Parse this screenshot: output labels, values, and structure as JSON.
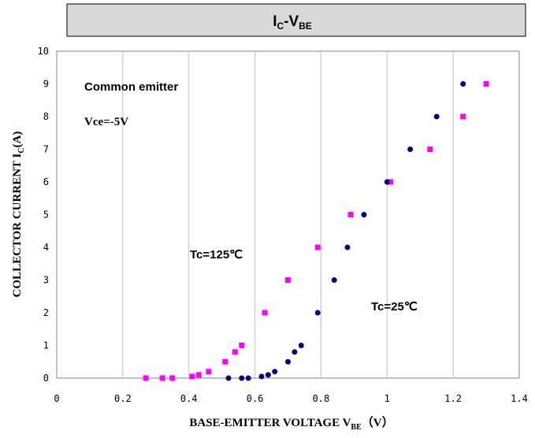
{
  "chart_data": {
    "type": "scatter",
    "title": "I",
    "title_sub1": "C",
    "title_mid": "-V",
    "title_sub2": "BE",
    "xlabel": "BASE-EMITTER VOLTAGE    V",
    "xlabel_sub": "BE",
    "xlabel_unit": "（V）",
    "ylabel": "COLLECTOR CURRENT    I",
    "ylabel_sub": "C",
    "ylabel_unit": "(A)",
    "xlim": [
      0,
      1.4
    ],
    "ylim": [
      0,
      10
    ],
    "x_ticks": [
      0,
      0.2,
      0.4,
      0.6,
      0.8,
      1,
      1.2,
      1.4
    ],
    "x_tick_labels": [
      "0",
      "0.2",
      "0.4",
      "0.6",
      "0.8",
      "1",
      "1.2",
      "1.4"
    ],
    "y_ticks": [
      0,
      1,
      2,
      3,
      4,
      5,
      6,
      7,
      8,
      9,
      10
    ],
    "y_tick_labels": [
      "0",
      "1",
      "2",
      "3",
      "4",
      "5",
      "6",
      "7",
      "8",
      "9",
      "10"
    ],
    "grid": "vertical",
    "annotations": {
      "common_emitter": "Common emitter",
      "vce": "Vce=-5V",
      "tc125": "Tc=125℃",
      "tc25": "Tc=25℃"
    },
    "series": [
      {
        "color": "#ff00ff",
        "marker": "square",
        "points": [
          [
            0.27,
            0
          ],
          [
            0.32,
            0
          ],
          [
            0.35,
            0
          ],
          [
            0.41,
            0.05
          ],
          [
            0.43,
            0.1
          ],
          [
            0.46,
            0.2
          ],
          [
            0.51,
            0.5
          ],
          [
            0.54,
            0.8
          ],
          [
            0.56,
            1.0
          ],
          [
            0.63,
            2
          ],
          [
            0.7,
            3
          ],
          [
            0.79,
            4
          ],
          [
            0.89,
            5
          ],
          [
            1.01,
            6
          ],
          [
            1.13,
            7
          ],
          [
            1.23,
            8
          ],
          [
            1.3,
            9
          ]
        ]
      },
      {
        "color": "#000080",
        "marker": "circle",
        "points": [
          [
            0.52,
            0
          ],
          [
            0.56,
            0
          ],
          [
            0.58,
            0
          ],
          [
            0.62,
            0.05
          ],
          [
            0.64,
            0.1
          ],
          [
            0.66,
            0.2
          ],
          [
            0.7,
            0.5
          ],
          [
            0.72,
            0.8
          ],
          [
            0.74,
            1.0
          ],
          [
            0.79,
            2
          ],
          [
            0.84,
            3
          ],
          [
            0.88,
            4
          ],
          [
            0.93,
            5
          ],
          [
            1.0,
            6
          ],
          [
            1.07,
            7
          ],
          [
            1.15,
            8
          ],
          [
            1.23,
            9
          ]
        ]
      }
    ]
  }
}
